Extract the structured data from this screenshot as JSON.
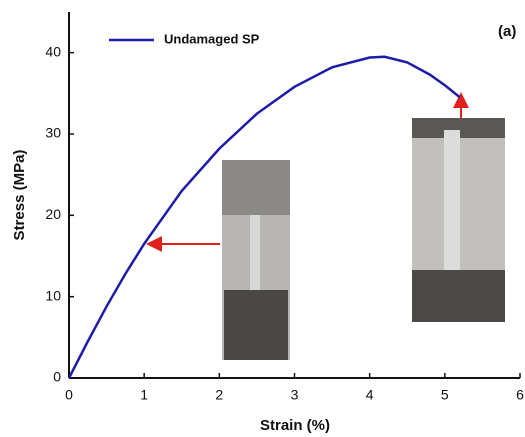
{
  "chart_data": {
    "type": "line",
    "annotation": "(a)",
    "xlabel": "Strain (%)",
    "ylabel": "Stress (MPa)",
    "xlim": [
      0,
      6
    ],
    "xticks": [
      0,
      1,
      2,
      3,
      4,
      5,
      6
    ],
    "ylim": [
      0,
      45
    ],
    "yticks": [
      0,
      10,
      20,
      30,
      40
    ],
    "legend": "upper left",
    "series": [
      {
        "name": "Undamaged SP",
        "color": "#1c1ca8",
        "x": [
          0,
          0.25,
          0.5,
          0.75,
          1,
          1.5,
          2,
          2.5,
          3,
          3.5,
          4,
          4.2,
          4.5,
          4.8,
          5,
          5.2
        ],
        "values": [
          0,
          4.5,
          8.8,
          12.8,
          16.5,
          23,
          28.2,
          32.5,
          35.8,
          38.2,
          39.4,
          39.5,
          38.8,
          37.3,
          36,
          34.5
        ]
      }
    ]
  }
}
